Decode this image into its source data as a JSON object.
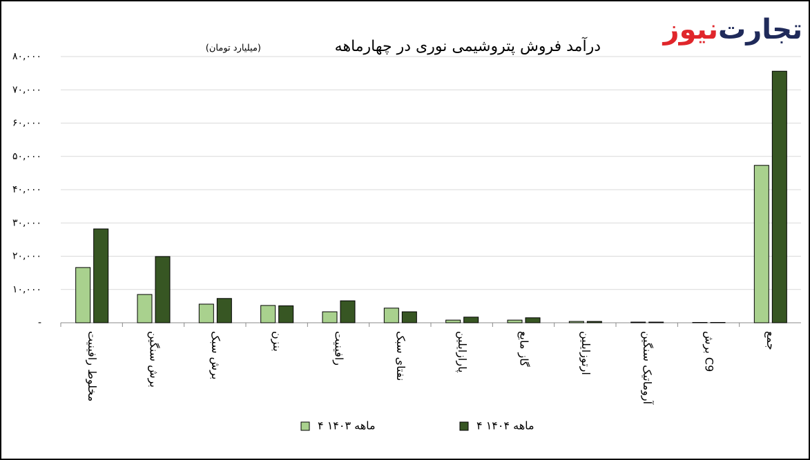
{
  "brand": {
    "part1": "تجارت",
    "part2": "نیوز"
  },
  "chart_data": {
    "type": "bar",
    "title": "درآمد فروش پتروشیمی نوری در چهارماهه",
    "subtitle": "(میلیارد تومان)",
    "categories": [
      "مخلوط رافینیت",
      "برش سنگین",
      "برش سبک",
      "بنزن",
      "رافینیت",
      "نفتای سبک",
      "پارازایلین",
      "گاز مایع",
      "ارتوزایلین",
      "آروماتیک سنگین",
      "برش C9",
      "جمع"
    ],
    "series": [
      {
        "name": "۴ ماهه ۱۴۰۳",
        "color": "#a9d18e",
        "values": [
          16600,
          8500,
          5600,
          5200,
          3300,
          4400,
          800,
          800,
          400,
          200,
          100,
          47300
        ]
      },
      {
        "name": "۴ ماهه ۱۴۰۴",
        "color": "#375623",
        "values": [
          28200,
          19900,
          7300,
          5100,
          6600,
          3300,
          1700,
          1500,
          400,
          200,
          100,
          75600
        ]
      }
    ],
    "ylim": [
      0,
      80000
    ],
    "yticks": [
      {
        "value": 0,
        "label": "-"
      },
      {
        "value": 10000,
        "label": "۱۰,۰۰۰"
      },
      {
        "value": 20000,
        "label": "۲۰,۰۰۰"
      },
      {
        "value": 30000,
        "label": "۳۰,۰۰۰"
      },
      {
        "value": 40000,
        "label": "۴۰,۰۰۰"
      },
      {
        "value": 50000,
        "label": "۵۰,۰۰۰"
      },
      {
        "value": 60000,
        "label": "۶۰,۰۰۰"
      },
      {
        "value": 70000,
        "label": "۷۰,۰۰۰"
      },
      {
        "value": 80000,
        "label": "۸۰,۰۰۰"
      }
    ],
    "grid": true
  }
}
